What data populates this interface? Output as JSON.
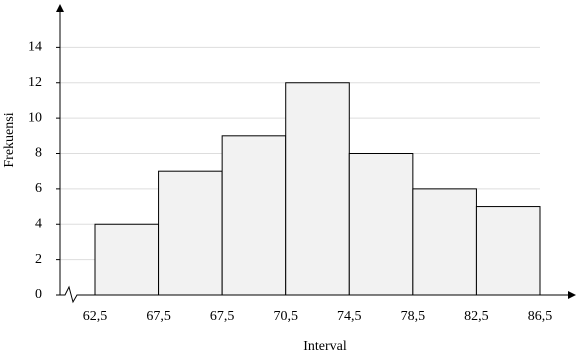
{
  "chart_data": {
    "type": "histogram",
    "xlabel": "Interval",
    "ylabel": "Frekuensi",
    "bins": [
      "62,5",
      "67,5",
      "67,5",
      "70,5",
      "74,5",
      "78,5",
      "82,5",
      "86,5"
    ],
    "values": [
      4,
      7,
      9,
      12,
      8,
      6,
      5
    ],
    "color": "#f2f2f2",
    "ylim": [
      0,
      16
    ],
    "yticks": [
      0,
      2,
      4,
      6,
      8,
      10,
      12,
      14
    ],
    "grid": true
  }
}
